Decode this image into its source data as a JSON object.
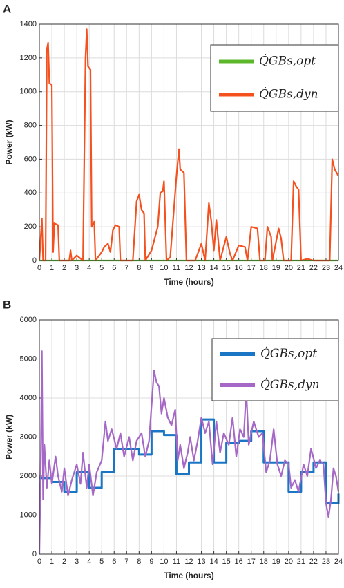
{
  "chart_data": [
    {
      "type": "line",
      "panel_label": "A",
      "ylabel": "Power (kW)",
      "xlabel": "Time (hours)",
      "xlim": [
        0,
        24
      ],
      "ylim": [
        0,
        1400
      ],
      "xticks": [
        0,
        1,
        2,
        3,
        4,
        5,
        6,
        7,
        8,
        9,
        10,
        11,
        12,
        13,
        14,
        15,
        16,
        17,
        18,
        19,
        20,
        21,
        22,
        23,
        24
      ],
      "yticks": [
        0,
        200,
        400,
        600,
        800,
        1000,
        1200,
        1400
      ],
      "grid": true,
      "legend": "upper right",
      "series": [
        {
          "name": "Q̇GBs,opt",
          "color": "#5cb82a",
          "x": [
            0,
            24
          ],
          "values": [
            0,
            0
          ]
        },
        {
          "name": "Q̇GBs,dyn",
          "color": "#f4511e",
          "x": [
            0,
            0.2,
            0.3,
            0.5,
            0.6,
            0.7,
            0.8,
            1.0,
            1.1,
            1.2,
            1.5,
            1.6,
            2.4,
            2.5,
            2.6,
            3.0,
            3.5,
            3.7,
            3.8,
            3.9,
            4.1,
            4.2,
            4.4,
            4.5,
            5.0,
            5.2,
            5.5,
            5.7,
            5.9,
            6.1,
            6.4,
            6.5,
            7.5,
            7.8,
            8.0,
            8.2,
            8.4,
            8.5,
            9.0,
            9.5,
            9.7,
            9.9,
            10.0,
            10.2,
            10.5,
            11.0,
            11.2,
            11.3,
            11.6,
            11.8,
            12.5,
            13.0,
            13.3,
            13.6,
            13.8,
            14.0,
            14.2,
            14.5,
            15.0,
            15.3,
            15.5,
            16.0,
            16.5,
            16.7,
            17.0,
            17.5,
            17.7,
            18.1,
            18.3,
            18.6,
            18.7,
            19.2,
            19.4,
            19.6,
            20.2,
            20.4,
            20.6,
            20.8,
            21.0,
            21.5,
            22.0,
            23.0,
            23.3,
            23.5,
            23.7,
            24
          ],
          "values": [
            0,
            250,
            0,
            0,
            1250,
            1290,
            1050,
            1040,
            50,
            220,
            210,
            0,
            0,
            60,
            0,
            30,
            0,
            1200,
            1370,
            1150,
            1130,
            200,
            230,
            0,
            50,
            80,
            100,
            50,
            180,
            210,
            200,
            0,
            0,
            350,
            390,
            300,
            280,
            0,
            60,
            200,
            400,
            410,
            470,
            0,
            20,
            500,
            660,
            540,
            520,
            0,
            0,
            100,
            0,
            340,
            230,
            60,
            240,
            0,
            140,
            40,
            0,
            90,
            80,
            0,
            200,
            190,
            0,
            0,
            200,
            140,
            0,
            190,
            130,
            0,
            0,
            470,
            440,
            420,
            0,
            10,
            0,
            0,
            0,
            600,
            540,
            500
          ]
        }
      ]
    },
    {
      "type": "line",
      "panel_label": "B",
      "ylabel": "Power (kW)",
      "xlabel": "Time (hours)",
      "xlim": [
        0,
        24
      ],
      "ylim": [
        0,
        6000
      ],
      "xticks": [
        0,
        1,
        2,
        3,
        4,
        5,
        6,
        7,
        8,
        9,
        10,
        11,
        12,
        13,
        14,
        15,
        16,
        17,
        18,
        19,
        20,
        21,
        22,
        23,
        24
      ],
      "yticks": [
        0,
        1000,
        2000,
        3000,
        4000,
        5000,
        6000
      ],
      "grid": true,
      "legend": "upper right",
      "series": [
        {
          "name": "Q̇GBs,opt",
          "color": "#1a76c4",
          "drawstyle": "steps-post",
          "x": [
            0,
            1,
            2,
            3,
            4,
            5,
            6,
            7,
            8,
            9,
            10,
            11,
            12,
            13,
            14,
            15,
            16,
            17,
            18,
            19,
            20,
            21,
            22,
            23,
            24
          ],
          "values": [
            1950,
            1850,
            1600,
            2100,
            1700,
            2100,
            2700,
            2700,
            2550,
            3150,
            3050,
            2050,
            2350,
            3450,
            2350,
            2850,
            2900,
            3150,
            2350,
            2350,
            1600,
            2100,
            2350,
            1300,
            1550
          ]
        },
        {
          "name": "Q̇GBs,dyn",
          "color": "#a568c6",
          "x": [
            0,
            0.1,
            0.2,
            0.3,
            0.4,
            0.6,
            0.8,
            1.0,
            1.3,
            1.5,
            1.8,
            2.0,
            2.3,
            2.6,
            3.0,
            3.3,
            3.5,
            3.8,
            4.0,
            4.3,
            4.6,
            5.0,
            5.3,
            5.5,
            5.8,
            6.2,
            6.5,
            6.8,
            7.2,
            7.5,
            7.8,
            8.2,
            8.5,
            8.8,
            9.2,
            9.4,
            9.6,
            9.8,
            10.0,
            10.3,
            10.6,
            10.9,
            11.1,
            11.3,
            11.6,
            11.9,
            12.1,
            12.4,
            12.7,
            13.0,
            13.3,
            13.6,
            13.9,
            14.2,
            14.5,
            14.8,
            15.2,
            15.5,
            15.8,
            16.1,
            16.4,
            16.6,
            16.8,
            17.2,
            17.6,
            17.9,
            18.2,
            18.5,
            18.8,
            19.1,
            19.4,
            19.7,
            20.0,
            20.2,
            20.5,
            20.8,
            21.2,
            21.5,
            21.8,
            22.2,
            22.5,
            22.8,
            23.0,
            23.2,
            23.4,
            23.6,
            23.8,
            24
          ],
          "values": [
            0,
            2000,
            5200,
            1400,
            2800,
            1700,
            2400,
            1800,
            2500,
            2000,
            1600,
            2200,
            1500,
            1900,
            2300,
            1800,
            2600,
            1700,
            2300,
            1500,
            2100,
            2400,
            3400,
            2900,
            3200,
            2700,
            3100,
            2500,
            3000,
            2400,
            2900,
            3100,
            2500,
            2900,
            4700,
            4400,
            4300,
            3600,
            4000,
            3500,
            3300,
            3700,
            2400,
            2800,
            2200,
            2600,
            3000,
            2400,
            2900,
            3500,
            3100,
            3400,
            2300,
            3400,
            2600,
            3100,
            2800,
            3500,
            2500,
            3200,
            3000,
            4200,
            2800,
            3400,
            3000,
            3100,
            2100,
            2400,
            3200,
            2300,
            2000,
            2400,
            2300,
            1700,
            1900,
            1600,
            2300,
            2000,
            2700,
            2200,
            2400,
            2300,
            1300,
            950,
            1400,
            2200,
            2000,
            1600
          ]
        }
      ]
    }
  ]
}
